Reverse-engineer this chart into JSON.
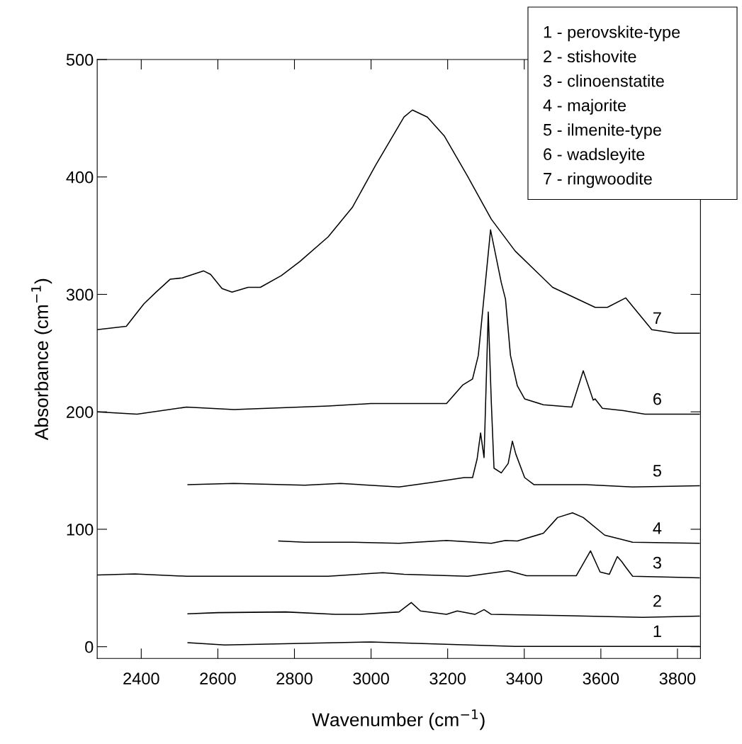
{
  "chart_data": {
    "type": "line",
    "xlabel": "Wavenumber (cm$^{−1}$)",
    "ylabel": "Absorbance (cm$^{−1}$)",
    "xlim": [
      2285,
      3860
    ],
    "ylim": [
      -10,
      500
    ],
    "xticks": [
      2400,
      2600,
      2800,
      3000,
      3200,
      3400,
      3600,
      3800
    ],
    "yticks": [
      0,
      100,
      200,
      300,
      400,
      500
    ],
    "grid": false,
    "marker": "none",
    "line_style": "solid",
    "annotations": [
      "1 - perovskite-type",
      "2 - stishovite",
      "3 - clinoenstatite",
      "4 - majorite",
      "5 - ilmenite-type",
      "6 - wadsleyite",
      "7 - ringwoodite"
    ],
    "series": [
      {
        "name": "1",
        "color": "#000000",
        "x": [
          2522,
          2618,
          2999,
          3376,
          3857
        ],
        "values": [
          3.4,
          1.5,
          4,
          0.3,
          0.3
        ]
      },
      {
        "name": "2",
        "color": "#000000",
        "x": [
          2522,
          2600,
          2777,
          2907,
          2970,
          3073,
          3105,
          3129,
          3197,
          3225,
          3271,
          3295,
          3314,
          3499,
          3709,
          3857
        ],
        "values": [
          28,
          29,
          29.6,
          27.5,
          27.5,
          29.6,
          37.6,
          30.4,
          27.5,
          30.4,
          27.5,
          31.6,
          27.5,
          26.5,
          25,
          26
        ]
      },
      {
        "name": "3",
        "color": "#000000",
        "x": [
          2285,
          2383,
          2518,
          2888,
          3031,
          3086,
          3253,
          3358,
          3406,
          3536,
          3573,
          3598,
          3622,
          3643,
          3654,
          3665,
          3683,
          3857
        ],
        "values": [
          61,
          62,
          60,
          60,
          63,
          61.6,
          60,
          64.6,
          60.5,
          60.5,
          81.6,
          63.6,
          61.6,
          76.7,
          72.7,
          67.7,
          60,
          58.7
        ]
      },
      {
        "name": "4",
        "color": "#000000",
        "x": [
          2759,
          2827,
          2951,
          3073,
          3197,
          3314,
          3351,
          3382,
          3450,
          3487,
          3526,
          3554,
          3610,
          3683,
          3857
        ],
        "values": [
          90,
          89,
          89,
          88,
          90.5,
          88,
          90.5,
          90,
          96.6,
          110,
          114,
          110,
          95,
          89,
          88
        ]
      },
      {
        "name": "5",
        "color": "#000000",
        "x": [
          2522,
          2642,
          2827,
          2920,
          3073,
          3160,
          3243,
          3265,
          3277,
          3286,
          3295,
          3306,
          3314,
          3321,
          3340,
          3358,
          3369,
          3378,
          3401,
          3425,
          3561,
          3683,
          3857
        ],
        "values": [
          138,
          139,
          137.5,
          139,
          136,
          140,
          144,
          144,
          160,
          182,
          161,
          285,
          208,
          152,
          148,
          156,
          175,
          164,
          144,
          138,
          138,
          136,
          137
        ]
      },
      {
        "name": "6",
        "color": "#000000",
        "x": [
          2285,
          2389,
          2518,
          2642,
          2888,
          2999,
          3197,
          3240,
          3265,
          3280,
          3312,
          3340,
          3351,
          3364,
          3382,
          3401,
          3450,
          3524,
          3554,
          3580,
          3585,
          3604,
          3659,
          3715,
          3857
        ],
        "values": [
          200,
          198,
          204,
          202,
          205,
          207,
          207,
          223,
          228,
          248,
          355,
          310,
          296,
          248,
          222,
          211,
          206,
          204,
          235,
          210,
          211,
          203,
          201,
          198,
          198
        ]
      },
      {
        "name": "7",
        "color": "#000000",
        "x": [
          2285,
          2361,
          2383,
          2407,
          2439,
          2476,
          2507,
          2563,
          2581,
          2611,
          2637,
          2679,
          2711,
          2766,
          2814,
          2888,
          2951,
          3012,
          3086,
          3108,
          3147,
          3191,
          3253,
          3314,
          3376,
          3474,
          3585,
          3617,
          3665,
          3733,
          3794,
          3857
        ],
        "values": [
          270,
          272.8,
          282,
          292,
          302,
          313,
          314,
          320,
          317,
          305,
          302,
          306,
          306,
          316,
          328,
          349,
          374,
          410,
          451,
          457,
          451,
          435,
          400,
          364,
          337,
          306,
          289,
          289,
          297,
          270,
          267,
          267
        ]
      }
    ]
  }
}
